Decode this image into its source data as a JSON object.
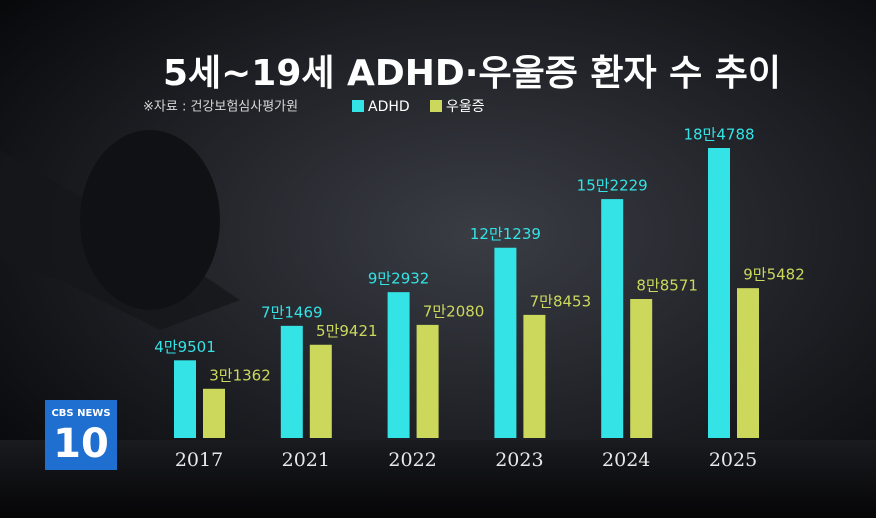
{
  "chart_data": {
    "type": "bar",
    "title": "5세~19세 ADHD·우울증 환자 수 추이",
    "source": "※자료 : 건강보험심사평가원",
    "categories": [
      "2017",
      "2021",
      "2022",
      "2023",
      "2024",
      "2025"
    ],
    "series": [
      {
        "name": "ADHD",
        "color": "#33e3e6",
        "values": [
          49501,
          71469,
          92932,
          121239,
          152229,
          184788
        ],
        "value_labels": [
          "4만9501",
          "7만1469",
          "9만2932",
          "12만1239",
          "15만2229",
          "18만4788"
        ]
      },
      {
        "name": "우울증",
        "color": "#cbd85c",
        "values": [
          31362,
          59421,
          72080,
          78453,
          88571,
          95482
        ],
        "value_labels": [
          "3만1362",
          "5만9421",
          "7만2080",
          "7만8453",
          "8만8571",
          "9만5482"
        ]
      }
    ]
  },
  "broadcaster": {
    "name": "CBS NEWS",
    "number": "10"
  }
}
